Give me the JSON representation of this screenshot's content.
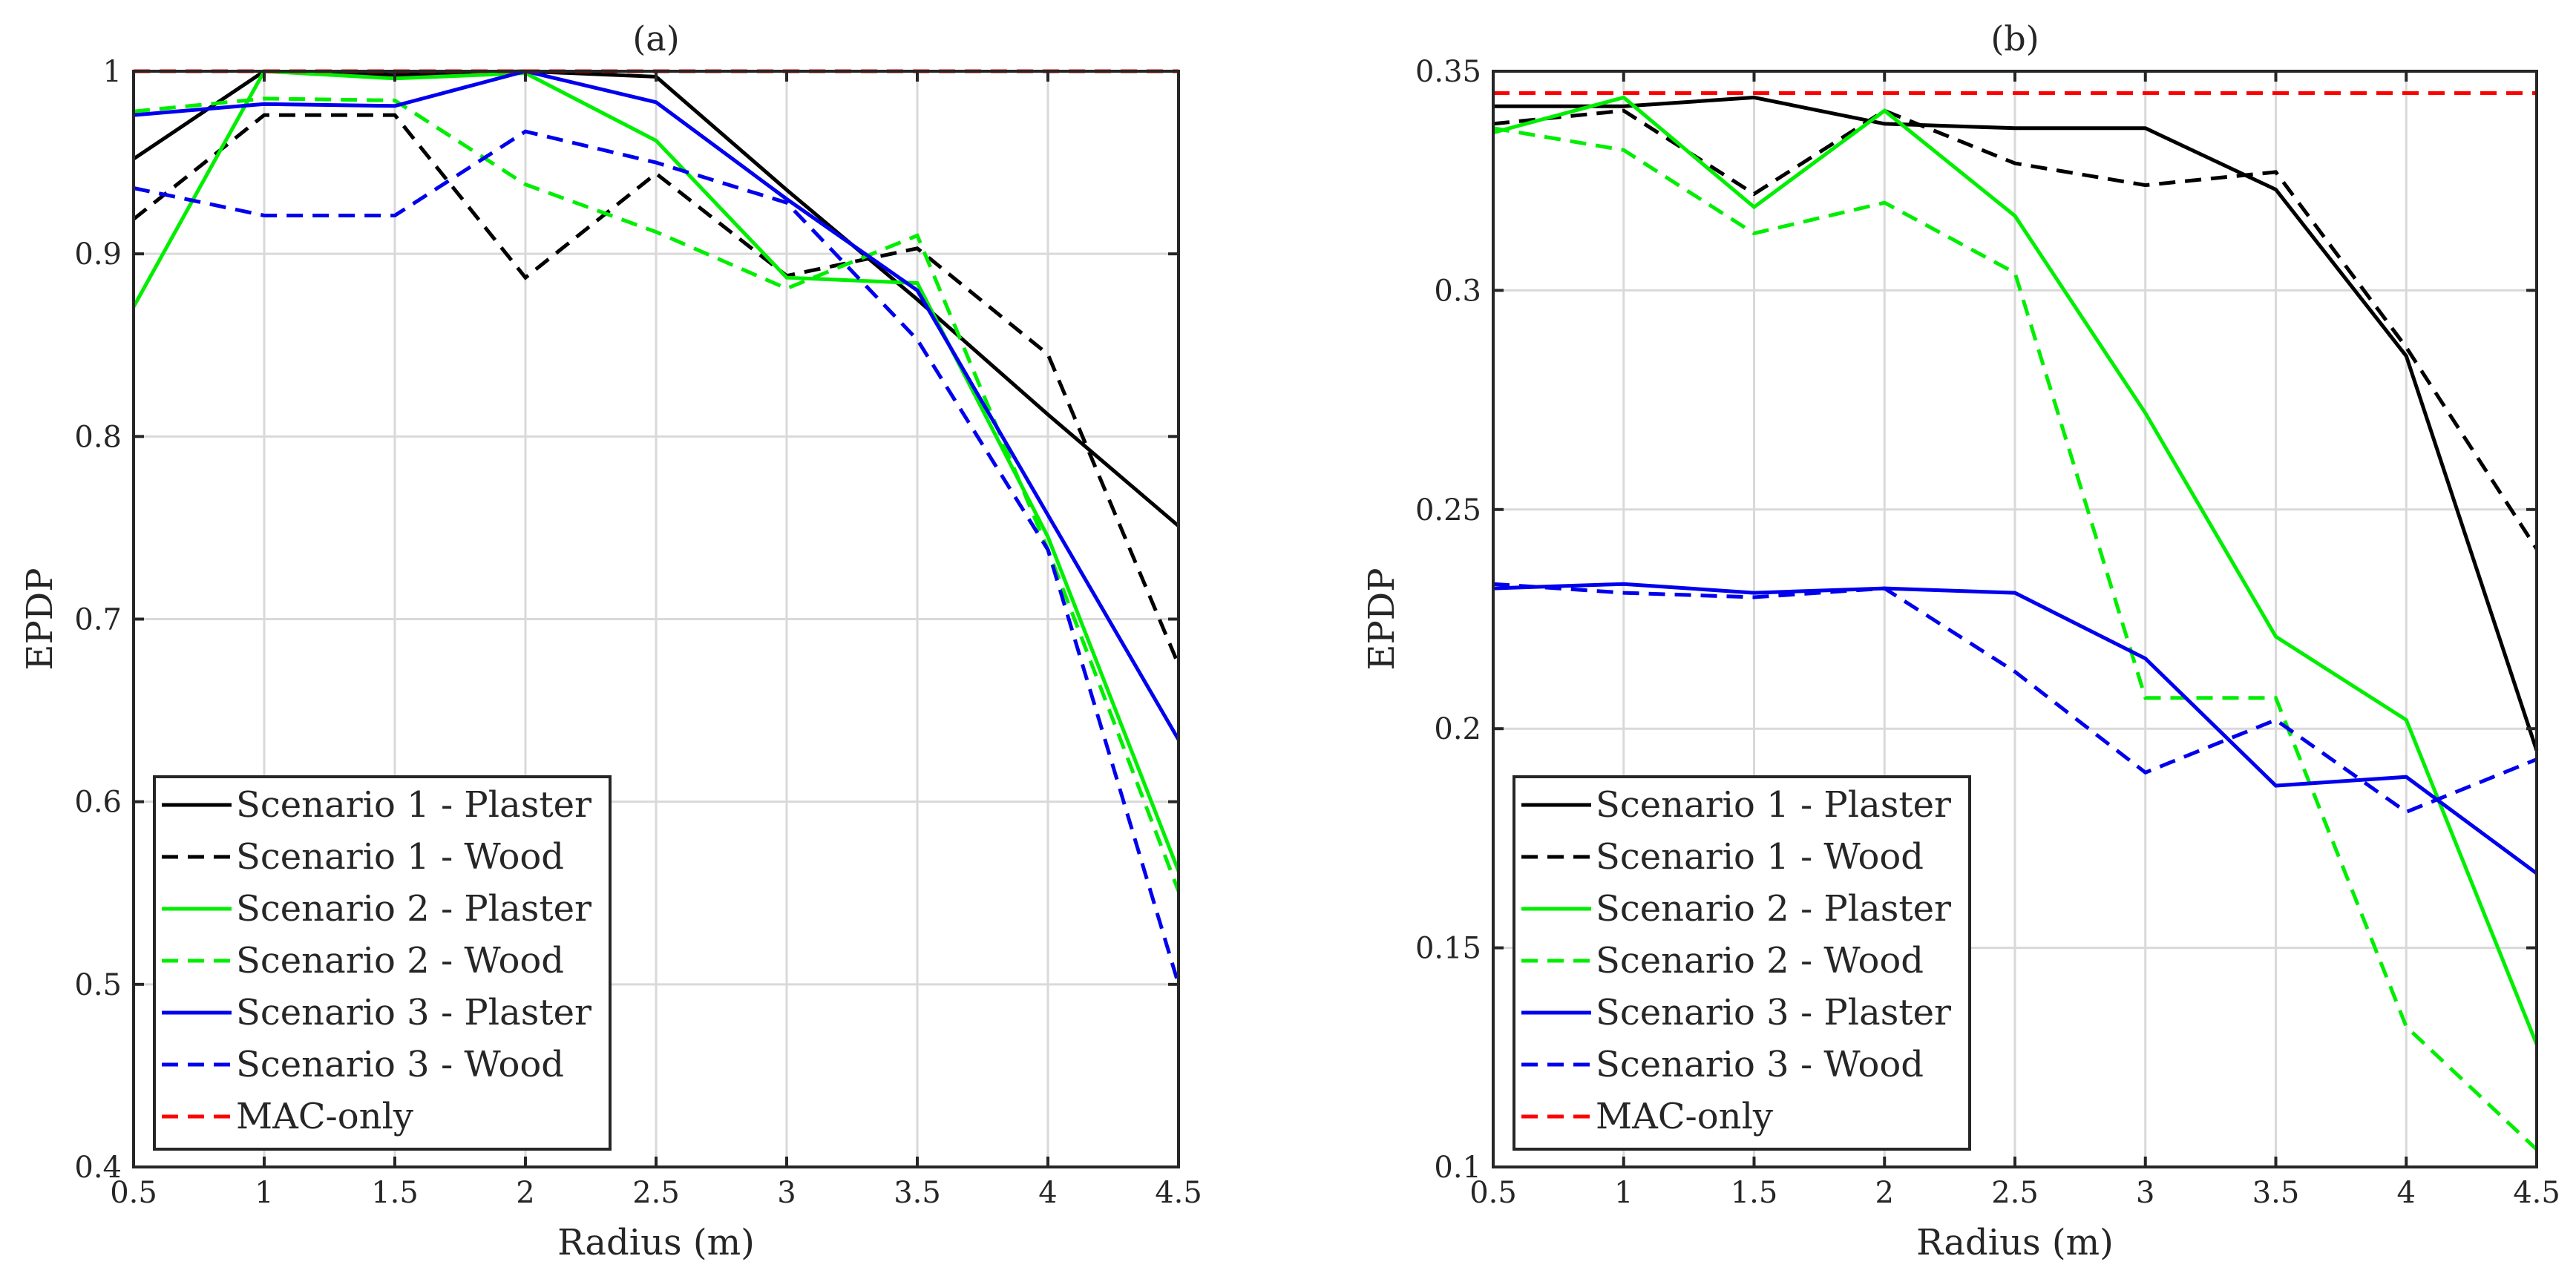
{
  "chart_data": [
    {
      "type": "line",
      "title": "(a)",
      "xlabel": "Radius (m)",
      "ylabel": "EPDP",
      "xlim": [
        0.5,
        4.5
      ],
      "ylim": [
        0.4,
        1.0
      ],
      "grid": true,
      "legend_position": "bottom-left",
      "x": [
        0.5,
        1,
        1.5,
        2,
        2.5,
        3,
        3.5,
        4,
        4.5
      ],
      "xticks": [
        0.5,
        1,
        1.5,
        2,
        2.5,
        3,
        3.5,
        4,
        4.5
      ],
      "xtick_labels": [
        "0.5",
        "1",
        "1.5",
        "2",
        "2.5",
        "3",
        "3.5",
        "4",
        "4.5"
      ],
      "yticks": [
        0.4,
        0.5,
        0.6,
        0.7,
        0.8,
        0.9,
        1.0
      ],
      "ytick_labels": [
        "0.4",
        "0.5",
        "0.6",
        "0.7",
        "0.8",
        "0.9",
        "1"
      ],
      "series": [
        {
          "name": "Scenario 1 - Plaster",
          "color": "#000000",
          "dash": "solid",
          "values": [
            0.952,
            1.0,
            0.998,
            1.0,
            0.997,
            0.935,
            0.875,
            0.812,
            0.751
          ]
        },
        {
          "name": "Scenario 1 - Wood",
          "color": "#000000",
          "dash": "dashed",
          "values": [
            0.919,
            0.976,
            0.976,
            0.887,
            0.944,
            0.888,
            0.903,
            0.845,
            0.675
          ]
        },
        {
          "name": "Scenario 2 - Plaster",
          "color": "#00ee00",
          "dash": "solid",
          "values": [
            0.871,
            1.0,
            0.996,
            0.999,
            0.962,
            0.887,
            0.884,
            0.745,
            0.562
          ]
        },
        {
          "name": "Scenario 2 - Wood",
          "color": "#00ee00",
          "dash": "dashed",
          "values": [
            0.978,
            0.985,
            0.984,
            0.938,
            0.912,
            0.881,
            0.91,
            0.738,
            0.551
          ]
        },
        {
          "name": "Scenario 3 - Plaster",
          "color": "#0000ee",
          "dash": "solid",
          "values": [
            0.976,
            0.982,
            0.981,
            1.0,
            0.983,
            0.93,
            0.88,
            0.757,
            0.634
          ]
        },
        {
          "name": "Scenario 3 - Wood",
          "color": "#0000ee",
          "dash": "dashed",
          "values": [
            0.936,
            0.921,
            0.921,
            0.967,
            0.95,
            0.928,
            0.853,
            0.738,
            0.5
          ]
        },
        {
          "name": "MAC-only",
          "color": "#ff0000",
          "dash": "dashed",
          "values": [
            1.0,
            1.0,
            1.0,
            1.0,
            1.0,
            1.0,
            1.0,
            1.0,
            1.0
          ]
        }
      ]
    },
    {
      "type": "line",
      "title": "(b)",
      "xlabel": "Radius (m)",
      "ylabel": "EPDP",
      "xlim": [
        0.5,
        4.5
      ],
      "ylim": [
        0.1,
        0.35
      ],
      "grid": true,
      "legend_position": "bottom-left",
      "x": [
        0.5,
        1,
        1.5,
        2,
        2.5,
        3,
        3.5,
        4,
        4.5
      ],
      "xticks": [
        0.5,
        1,
        1.5,
        2,
        2.5,
        3,
        3.5,
        4,
        4.5
      ],
      "xtick_labels": [
        "0.5",
        "1",
        "1.5",
        "2",
        "2.5",
        "3",
        "3.5",
        "4",
        "4.5"
      ],
      "yticks": [
        0.1,
        0.15,
        0.2,
        0.25,
        0.3,
        0.35
      ],
      "ytick_labels": [
        "0.1",
        "0.15",
        "0.2",
        "0.25",
        "0.3",
        "0.35"
      ],
      "series": [
        {
          "name": "Scenario 1 - Plaster",
          "color": "#000000",
          "dash": "solid",
          "values": [
            0.342,
            0.342,
            0.344,
            0.338,
            0.337,
            0.337,
            0.323,
            0.285,
            0.195
          ]
        },
        {
          "name": "Scenario 1 - Wood",
          "color": "#000000",
          "dash": "dashed",
          "values": [
            0.338,
            0.341,
            0.322,
            0.341,
            0.329,
            0.324,
            0.327,
            0.287,
            0.241
          ]
        },
        {
          "name": "Scenario 2 - Plaster",
          "color": "#00ee00",
          "dash": "solid",
          "values": [
            0.336,
            0.344,
            0.319,
            0.341,
            0.317,
            0.272,
            0.221,
            0.202,
            0.128
          ]
        },
        {
          "name": "Scenario 2 - Wood",
          "color": "#00ee00",
          "dash": "dashed",
          "values": [
            0.337,
            0.332,
            0.313,
            0.32,
            0.304,
            0.207,
            0.207,
            0.132,
            0.104
          ]
        },
        {
          "name": "Scenario 3 - Plaster",
          "color": "#0000ee",
          "dash": "solid",
          "values": [
            0.232,
            0.233,
            0.231,
            0.232,
            0.231,
            0.216,
            0.187,
            0.189,
            0.167
          ]
        },
        {
          "name": "Scenario 3 - Wood",
          "color": "#0000ee",
          "dash": "dashed",
          "values": [
            0.233,
            0.231,
            0.23,
            0.232,
            0.213,
            0.19,
            0.202,
            0.181,
            0.193
          ]
        },
        {
          "name": "MAC-only",
          "color": "#ff0000",
          "dash": "dashed",
          "values": [
            0.345,
            0.345,
            0.345,
            0.345,
            0.345,
            0.345,
            0.345,
            0.345,
            0.345
          ]
        }
      ]
    }
  ]
}
